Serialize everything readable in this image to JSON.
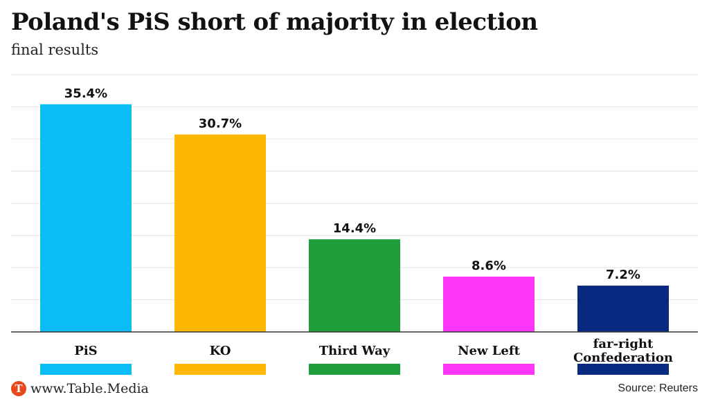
{
  "header": {
    "title": "Poland's PiS short of majority in election",
    "subtitle": "final results"
  },
  "footer": {
    "logo_letter": "T",
    "site": "www.Table.Media",
    "source": "Source: Reuters"
  },
  "chart_data": {
    "type": "bar",
    "categories": [
      "PiS",
      "KO",
      "Third Way",
      "New Left",
      "far-right Confederation"
    ],
    "category_lines": [
      [
        "PiS"
      ],
      [
        "KO"
      ],
      [
        "Third Way"
      ],
      [
        "New Left"
      ],
      [
        "far-right",
        "Confederation"
      ]
    ],
    "values": [
      35.4,
      30.7,
      14.4,
      8.6,
      7.2
    ],
    "value_labels": [
      "35.4%",
      "30.7%",
      "14.4%",
      "8.6%",
      "7.2%"
    ],
    "colors": [
      "#0bbdf5",
      "#feb801",
      "#1f9e3c",
      "#fc36f6",
      "#072a80"
    ],
    "ylim": [
      0,
      40
    ],
    "grid": true,
    "title": "Poland's PiS short of majority in election",
    "xlabel": "",
    "ylabel": ""
  }
}
